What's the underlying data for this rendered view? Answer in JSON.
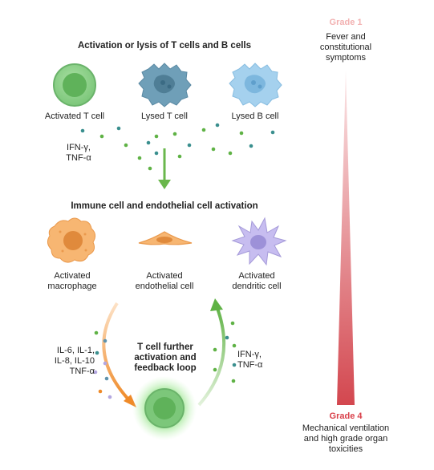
{
  "heading_top": "Activation or lysis of T cells and B cells",
  "heading_mid": "Immune cell and endothelial cell activation",
  "cells_top": {
    "activated_t": "Activated T cell",
    "lysed_t": "Lysed T cell",
    "lysed_b": "Lysed B cell"
  },
  "cytokines_top": "IFN-γ,\nTNF-α",
  "cells_mid": {
    "macrophage": "Activated\nmacrophage",
    "endothelial": "Activated\nendothelial cell",
    "dendritic": "Activated\ndendritic cell"
  },
  "cytokines_left": "IL-6, IL-1,\nIL-8, IL-10\nTNF-α",
  "loop_label": "T cell further\nactivation and\nfeedback loop",
  "cytokines_right": "IFN-γ,\nTNF-α",
  "grade1": {
    "title": "Grade 1",
    "desc": "Fever and\nconstitutional\nsymptoms"
  },
  "grade4": {
    "title": "Grade 4",
    "desc": "Mechanical ventilation\nand high grade organ\ntoxicities"
  },
  "colors": {
    "t_cell": "#7cc77a",
    "lysed_t": "#5f93ad",
    "lysed_b": "#8fc3e6",
    "macrophage": "#f2a55e",
    "endothelial": "#f2a55e",
    "dendritic": "#b3a7e0",
    "arrow_green": "#6ab74c",
    "arrow_orange": "#ef8a28",
    "grade_light": "#f6d2d4",
    "grade_dark": "#d3474f"
  }
}
